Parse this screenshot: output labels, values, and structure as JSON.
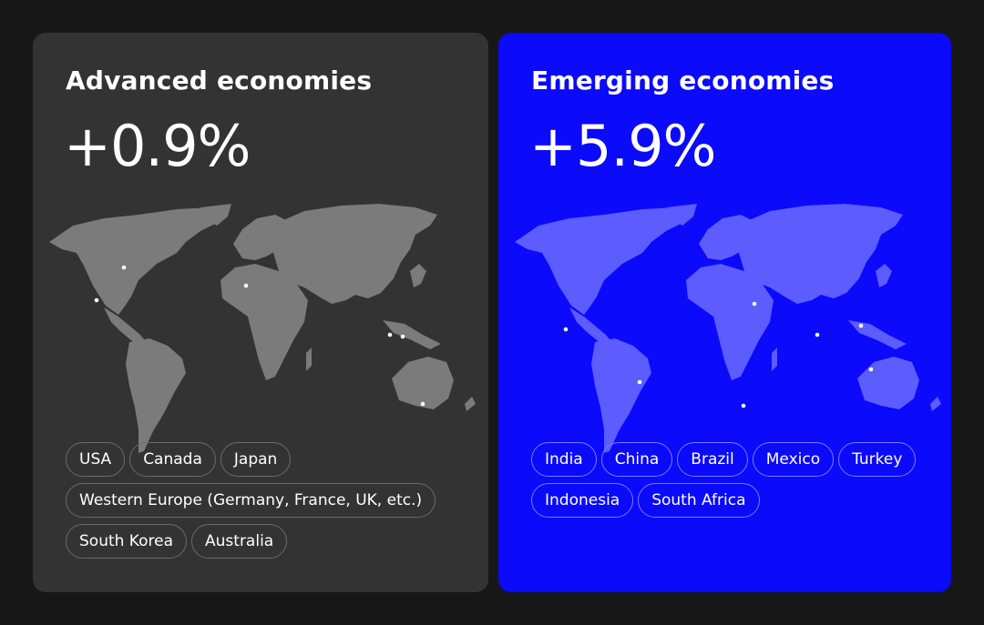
{
  "colors": {
    "background": "#171718",
    "advanced_card": "#333333",
    "advanced_land": "#7b7b7b",
    "advanced_tag_border": "#6a6a6a",
    "emerging_card": "#0b0afa",
    "emerging_land": "#5c5cff",
    "emerging_tag_border": "#7c7cff",
    "marker": "#ffffff"
  },
  "advanced": {
    "title": "Advanced economies",
    "value": "+0.9%",
    "map_icon": "world-map-icon",
    "tags": [
      "USA",
      "Canada",
      "Japan",
      "Western Europe (Germany, France, UK, etc.)",
      "South Korea",
      "Australia"
    ]
  },
  "emerging": {
    "title": "Emerging economies",
    "value": "+5.9%",
    "map_icon": "world-map-icon",
    "tags": [
      "India",
      "China",
      "Brazil",
      "Mexico",
      "Turkey",
      "Indonesia",
      "South Africa"
    ]
  }
}
